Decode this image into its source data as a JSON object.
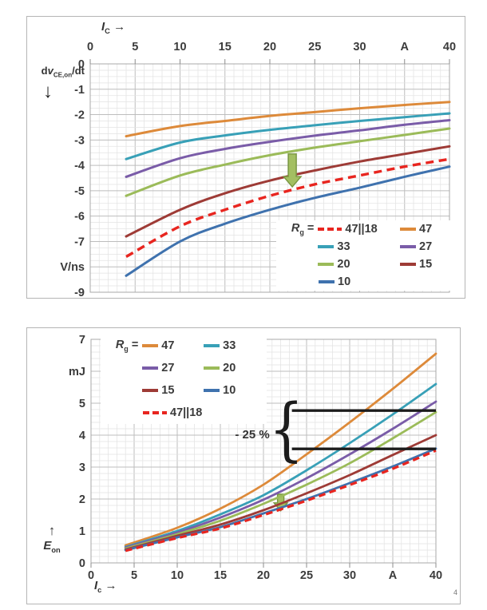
{
  "page": {
    "footnote": "4"
  },
  "chart_data": [
    {
      "type": "line",
      "xlabel_parts": {
        "it": "I",
        "sub": "C",
        "arrow": "→"
      },
      "ylabel_parts": {
        "pre": "d",
        "it": "v",
        "sub": "CE,on",
        "post": "/dt",
        "arrow": "↓"
      },
      "y_unit": "V/ns",
      "xlim": [
        0,
        40
      ],
      "ylim": [
        -9,
        0
      ],
      "x_tick_labels": [
        "0",
        "5",
        "10",
        "15",
        "20",
        "25",
        "30",
        "A",
        "40"
      ],
      "y_tick_labels": [
        "0",
        "-1",
        "-2",
        "-3",
        "-4",
        "-5",
        "-6",
        "-7",
        "V/ns",
        "-9"
      ],
      "grid": {
        "x_minor": 1,
        "x_major": 5,
        "y_minor": 0.25,
        "y_major": 1
      },
      "x": [
        4,
        10,
        15,
        20,
        25,
        30,
        35,
        40
      ],
      "series": [
        {
          "name": "47",
          "color": "#dd8a3a",
          "dashed": false,
          "values": [
            -2.85,
            -2.45,
            -2.25,
            -2.05,
            -1.9,
            -1.75,
            -1.62,
            -1.5
          ]
        },
        {
          "name": "33",
          "color": "#38a0b7",
          "dashed": false,
          "values": [
            -3.75,
            -3.1,
            -2.82,
            -2.6,
            -2.42,
            -2.25,
            -2.1,
            -1.95
          ]
        },
        {
          "name": "27",
          "color": "#7a5ca8",
          "dashed": false,
          "values": [
            -4.45,
            -3.72,
            -3.35,
            -3.07,
            -2.83,
            -2.62,
            -2.4,
            -2.22
          ]
        },
        {
          "name": "20",
          "color": "#9bbb59",
          "dashed": false,
          "values": [
            -5.2,
            -4.4,
            -3.97,
            -3.6,
            -3.3,
            -3.05,
            -2.8,
            -2.55
          ]
        },
        {
          "name": "15",
          "color": "#9e3b36",
          "dashed": false,
          "values": [
            -6.8,
            -5.75,
            -5.1,
            -4.6,
            -4.2,
            -3.85,
            -3.55,
            -3.25
          ]
        },
        {
          "name": "47||18",
          "color": "#e8251f",
          "dashed": true,
          "values": [
            -7.6,
            -6.4,
            -5.75,
            -5.2,
            -4.75,
            -4.4,
            -4.05,
            -3.75
          ]
        },
        {
          "name": "10",
          "color": "#3f72ae",
          "dashed": false,
          "values": [
            -8.35,
            -7.0,
            -6.3,
            -5.75,
            -5.28,
            -4.88,
            -4.45,
            -4.05
          ]
        }
      ],
      "legend": {
        "prefix_it": "R",
        "prefix_sub": "g",
        "prefix_eq": "=",
        "rows": [
          [
            "47||18",
            "47"
          ],
          [
            "33",
            "27"
          ],
          [
            "20",
            "15"
          ],
          [
            "10"
          ]
        ]
      },
      "annotations": {
        "green_arrow": {
          "x": 22.5,
          "y_from": -3.55,
          "y_to": -4.85,
          "fill": "#a3bf62",
          "stroke": "#78963f",
          "layer": "over"
        }
      }
    },
    {
      "type": "line",
      "xlabel_parts": {
        "it": "I",
        "sub": "c",
        "arrow": "→"
      },
      "ylabel_parts": {
        "it": "E",
        "sub": "on",
        "arrow": "↑"
      },
      "y_unit": "mJ",
      "xlim": [
        0,
        40
      ],
      "ylim": [
        0,
        7
      ],
      "x_tick_labels": [
        "0",
        "5",
        "10",
        "15",
        "20",
        "25",
        "30",
        "A",
        "40"
      ],
      "y_tick_labels": [
        "7",
        "mJ",
        "5",
        "4",
        "3",
        "2",
        "1",
        "0"
      ],
      "grid": {
        "x_minor": 1,
        "x_major": 5,
        "y_minor": 0.2,
        "y_major": 1
      },
      "x": [
        4,
        10,
        15,
        20,
        25,
        30,
        35,
        40
      ],
      "series": [
        {
          "name": "47",
          "color": "#dd8a3a",
          "dashed": false,
          "values": [
            0.55,
            1.1,
            1.7,
            2.45,
            3.4,
            4.4,
            5.45,
            6.55
          ]
        },
        {
          "name": "33",
          "color": "#38a0b7",
          "dashed": false,
          "values": [
            0.5,
            1.0,
            1.52,
            2.12,
            2.9,
            3.75,
            4.65,
            5.6
          ]
        },
        {
          "name": "27",
          "color": "#7a5ca8",
          "dashed": false,
          "values": [
            0.48,
            0.95,
            1.42,
            1.98,
            2.65,
            3.4,
            4.2,
            5.05
          ]
        },
        {
          "name": "20",
          "color": "#9bbb59",
          "dashed": false,
          "values": [
            0.45,
            0.9,
            1.32,
            1.85,
            2.45,
            3.12,
            3.9,
            4.72
          ]
        },
        {
          "name": "15",
          "color": "#9e3b36",
          "dashed": false,
          "values": [
            0.42,
            0.85,
            1.2,
            1.65,
            2.18,
            2.75,
            3.38,
            4.0
          ]
        },
        {
          "name": "10",
          "color": "#3f72ae",
          "dashed": false,
          "values": [
            0.4,
            0.8,
            1.12,
            1.55,
            2.0,
            2.5,
            3.02,
            3.58
          ]
        },
        {
          "name": "47||18",
          "color": "#e8251f",
          "dashed": true,
          "values": [
            0.38,
            0.78,
            1.08,
            1.5,
            1.95,
            2.44,
            2.95,
            3.52
          ]
        }
      ],
      "legend": {
        "prefix_it": "R",
        "prefix_sub": "g",
        "prefix_eq": "=",
        "rows": [
          [
            "47",
            "33"
          ],
          [
            "27",
            "20"
          ],
          [
            "15",
            "10"
          ],
          [
            "47||18"
          ]
        ]
      },
      "annotations": {
        "green_arrow": {
          "x": 22,
          "y_from": 2.15,
          "y_to": 1.63,
          "fill": "#a3bf62",
          "stroke": "#78963f",
          "layer": "under"
        },
        "reduction": {
          "label": "- 25 %",
          "upper_y": 4.77,
          "lower_y": 3.57,
          "x_start": 23.3,
          "x_end": 40,
          "color": "#1c1c1c",
          "brace": "{"
        }
      }
    }
  ]
}
